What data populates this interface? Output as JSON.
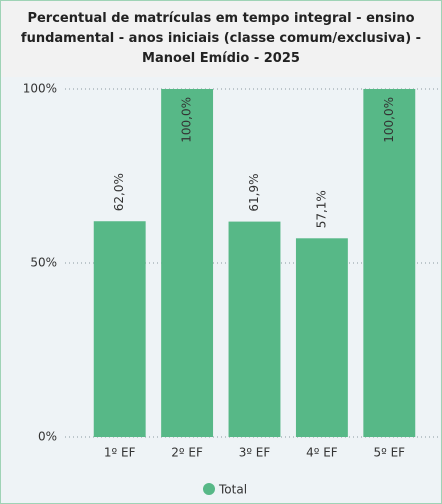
{
  "chart_data": {
    "type": "bar",
    "title": "Percentual de matrículas em tempo integral - ensino fundamental - anos iniciais (classe comum/exclusiva) - Manoel Emídio - 2025",
    "categories": [
      "1º EF",
      "2º EF",
      "3º EF",
      "4º EF",
      "5º EF"
    ],
    "series": [
      {
        "name": "Total",
        "color": "#57b887",
        "values": [
          62.0,
          100,
          61.9,
          57.1,
          100
        ],
        "value_labels": [
          "62,0%",
          "100,0%",
          "61,9%",
          "57,1%",
          "100,0%"
        ]
      }
    ],
    "ylim": [
      0,
      100
    ],
    "yticks": [
      {
        "value": 0,
        "label": "0%"
      },
      {
        "value": 50,
        "label": "50%"
      },
      {
        "value": 100,
        "label": "100%"
      }
    ],
    "grid": true,
    "legend": "bottom"
  }
}
